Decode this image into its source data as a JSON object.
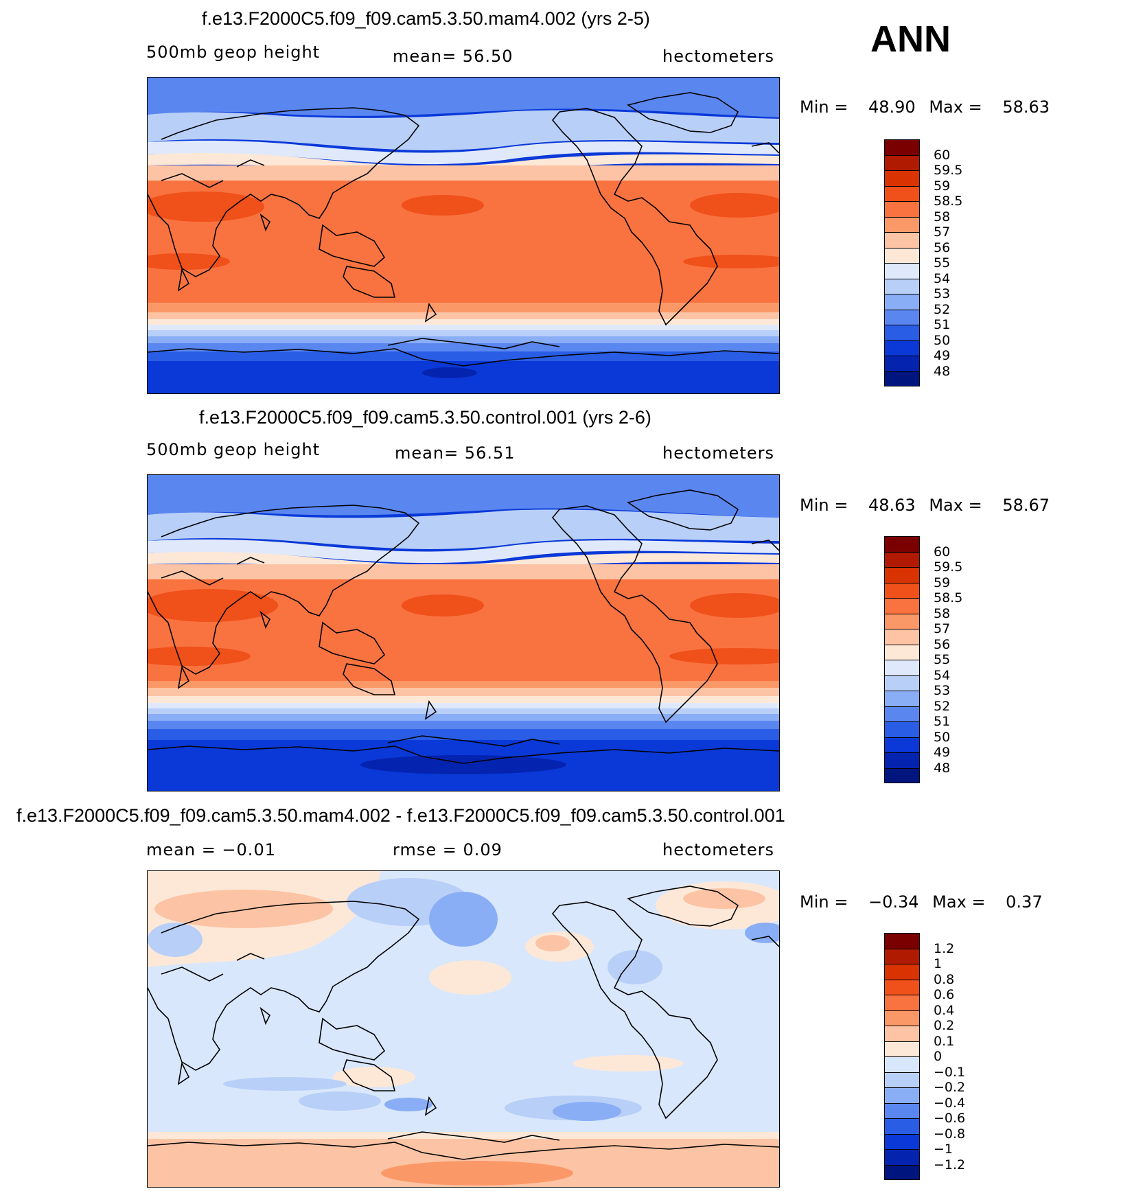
{
  "season": "ANN",
  "panels": [
    {
      "title": "f.e13.F2000C5.f09_f09.cam5.3.50.mam4.002 (yrs 2-5)",
      "left_label": "500mb  geop  height",
      "center_label": "mean=   56.50",
      "right_label": "hectometers",
      "min_label": "Min  =",
      "min_value": "48.90",
      "max_label": "Max  =",
      "max_value": "58.63",
      "colorbar": {
        "labels": [
          "60",
          "59.5",
          "59",
          "58.5",
          "58",
          "57",
          "56",
          "55",
          "54",
          "53",
          "52",
          "51",
          "50",
          "49",
          "48"
        ],
        "colors": [
          "#7a0000",
          "#b01a00",
          "#d83300",
          "#f0501a",
          "#f97340",
          "#fb9868",
          "#fcc4a4",
          "#fde8d8",
          "#dfe9fb",
          "#b8cff8",
          "#8aaef5",
          "#5a86f0",
          "#2a5de6",
          "#0a39d8",
          "#0424b0",
          "#00167e"
        ]
      }
    },
    {
      "title": "f.e13.F2000C5.f09_f09.cam5.3.50.control.001 (yrs 2-6)",
      "left_label": "500mb  geop  height",
      "center_label": "mean=   56.51",
      "right_label": "hectometers",
      "min_label": "Min  =",
      "min_value": "48.63",
      "max_label": "Max  =",
      "max_value": "58.67",
      "colorbar": {
        "labels": [
          "60",
          "59.5",
          "59",
          "58.5",
          "58",
          "57",
          "56",
          "55",
          "54",
          "53",
          "52",
          "51",
          "50",
          "49",
          "48"
        ],
        "colors": [
          "#7a0000",
          "#b01a00",
          "#d83300",
          "#f0501a",
          "#f97340",
          "#fb9868",
          "#fcc4a4",
          "#fde8d8",
          "#dfe9fb",
          "#b8cff8",
          "#8aaef5",
          "#5a86f0",
          "#2a5de6",
          "#0a39d8",
          "#0424b0",
          "#00167e"
        ]
      }
    },
    {
      "title": "f.e13.F2000C5.f09_f09.cam5.3.50.mam4.002 - f.e13.F2000C5.f09_f09.cam5.3.50.control.001",
      "left_label": "mean =   −0.01",
      "center_label": "rmse =    0.09",
      "right_label": "hectometers",
      "min_label": "Min  =",
      "min_value": "−0.34",
      "max_label": "Max  =",
      "max_value": "0.37",
      "colorbar": {
        "labels": [
          "1.2",
          "1",
          "0.8",
          "0.6",
          "0.4",
          "0.2",
          "0.1",
          "0",
          "−0.1",
          "−0.2",
          "−0.4",
          "−0.6",
          "−0.8",
          "−1",
          "−1.2"
        ],
        "colors": [
          "#7a0000",
          "#b01a00",
          "#d83300",
          "#f0501a",
          "#f97340",
          "#fb9868",
          "#fcc4a4",
          "#fde8d8",
          "#d8e7fb",
          "#b8cff8",
          "#8aaef5",
          "#5a86f0",
          "#2a5de6",
          "#0a39d8",
          "#0424b0",
          "#00167e"
        ]
      }
    }
  ],
  "field_colors": {
    "deep_blue": "#0a39d8",
    "blue": "#2a5de6",
    "mid_blue": "#5a86f0",
    "light_blue": "#8aaef5",
    "pale_blue": "#b8cff8",
    "very_pale_blue": "#dfe9fb",
    "very_pale_orange": "#fde8d8",
    "pale_orange": "#fcc4a4",
    "light_orange": "#fb9868",
    "orange": "#f97340",
    "red_orange": "#f0501a",
    "diff_neg": "#d8e7fb",
    "diff_pos": "#fde8d8"
  }
}
